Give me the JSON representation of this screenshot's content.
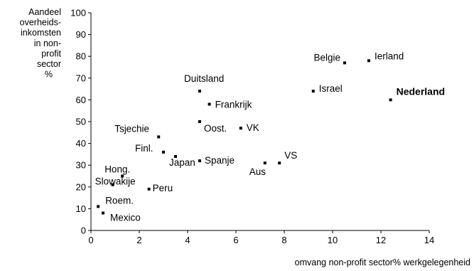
{
  "chart_data": {
    "type": "scatter",
    "title": "",
    "xlabel": "omvang non-profit sector% werkgelegenheid",
    "ylabel_lines": [
      "Aandeel",
      "overheids-",
      "inkomsten",
      "in non-",
      "profit",
      "sector",
      "%"
    ],
    "xlim": [
      0,
      14
    ],
    "ylim": [
      0,
      100
    ],
    "x_ticks": [
      "0",
      "2",
      "4",
      "6",
      "8",
      "10",
      "12",
      "14"
    ],
    "y_ticks": [
      "0",
      "10",
      "20",
      "30",
      "40",
      "50",
      "60",
      "70",
      "80",
      "90",
      "100"
    ],
    "grid": false,
    "legend": "none",
    "points": [
      {
        "label": "Belgie",
        "x": 10.5,
        "y": 77
      },
      {
        "label": "Ierland",
        "x": 11.5,
        "y": 78
      },
      {
        "label": "Israel",
        "x": 9.2,
        "y": 64
      },
      {
        "label": "Nederland",
        "x": 12.4,
        "y": 60,
        "bold": true
      },
      {
        "label": "Duitsland",
        "x": 4.5,
        "y": 64
      },
      {
        "label": "Frankrijk",
        "x": 4.9,
        "y": 58
      },
      {
        "label": "Oost.",
        "x": 4.5,
        "y": 50
      },
      {
        "label": "VK",
        "x": 6.2,
        "y": 47
      },
      {
        "label": "Tsjechie",
        "x": 2.8,
        "y": 43
      },
      {
        "label": "Finl.",
        "x": 3.0,
        "y": 36
      },
      {
        "label": "Japan",
        "x": 3.5,
        "y": 34
      },
      {
        "label": "Spanje",
        "x": 4.5,
        "y": 32
      },
      {
        "label": "VS",
        "x": 7.8,
        "y": 31
      },
      {
        "label": "Aus",
        "x": 7.2,
        "y": 31
      },
      {
        "label": "Hong.",
        "x": 1.3,
        "y": 25
      },
      {
        "label": "Slowakije",
        "x": 0.9,
        "y": 21
      },
      {
        "label": "Peru",
        "x": 2.4,
        "y": 19
      },
      {
        "label": "Roem.",
        "x": 0.3,
        "y": 11
      },
      {
        "label": "Mexico",
        "x": 0.5,
        "y": 8
      }
    ]
  }
}
